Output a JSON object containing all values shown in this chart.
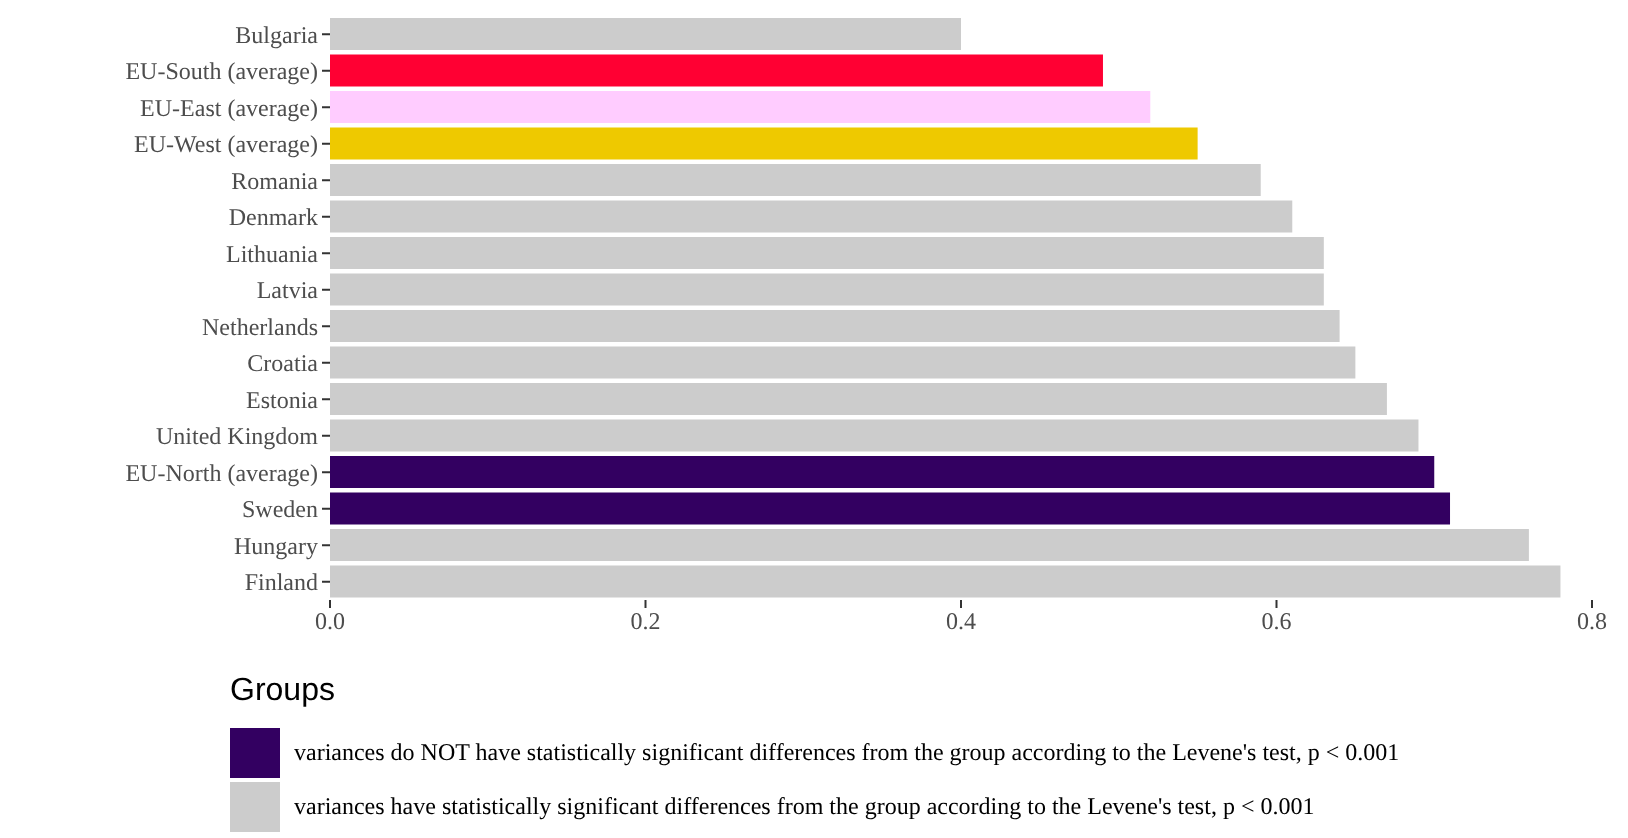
{
  "chart_data": {
    "type": "bar",
    "orientation": "horizontal",
    "stacked": true,
    "categories": [
      "Bulgaria",
      "EU-South (average)",
      "EU-East (average)",
      "EU-West (average)",
      "Romania",
      "Denmark",
      "Lithuania",
      "Latvia",
      "Netherlands",
      "Croatia",
      "Estonia",
      "United Kingdom",
      "EU-North (average)",
      "Sweden",
      "Hungary",
      "Finland"
    ],
    "series": [
      {
        "name": "variances do NOT have statistically significant differences from the group according to the Levene's test, p < 0.001",
        "color": "#330061",
        "values": [
          null,
          null,
          null,
          null,
          null,
          null,
          null,
          null,
          null,
          null,
          null,
          null,
          0.7,
          0.71,
          null,
          null
        ]
      },
      {
        "name": "variances have statistically significant differences from the group according to the Levene's test, p < 0.001",
        "color": "#cccccc",
        "values": [
          0.4,
          null,
          null,
          null,
          0.59,
          0.61,
          0.63,
          0.63,
          0.64,
          0.65,
          0.67,
          0.69,
          null,
          null,
          0.76,
          0.78
        ]
      },
      {
        "colors": [
          "#cccccc",
          "#ff0033",
          "#ffccff",
          "#eec900",
          "#cccccc",
          "#cccccc",
          "#cccccc",
          "#cccccc",
          "#cccccc",
          "#cccccc",
          "#cccccc",
          "#cccccc",
          "#cccccc",
          "#cccccc",
          "#cccccc",
          "#cccccc"
        ],
        "values": [
          null,
          0.49,
          0.52,
          0.55,
          null,
          null,
          null,
          null,
          null,
          null,
          null,
          null,
          null,
          null,
          null,
          null
        ]
      }
    ],
    "xlim": [
      0,
      0.8
    ],
    "xticks": [
      {
        "value": 0,
        "label": "0.0"
      },
      0.2,
      0.4,
      0.6,
      {
        "value": 0.8,
        "label": "0.8"
      }
    ],
    "legend": "bottom",
    "legend_title": "Groups",
    "grid": false
  }
}
